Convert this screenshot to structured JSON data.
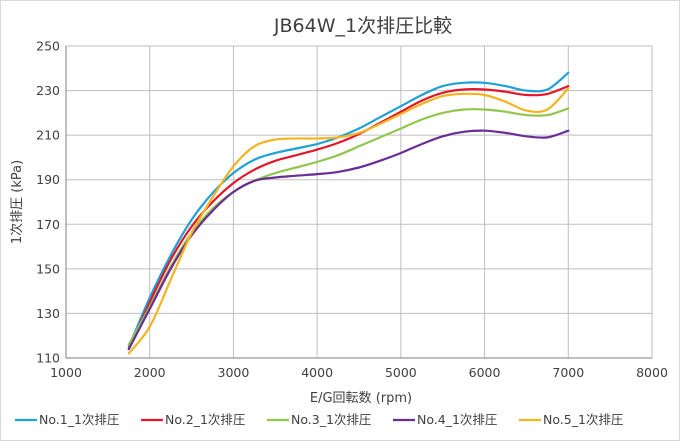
{
  "chart_data": {
    "type": "line",
    "title": "JB64W_1次排圧比較",
    "xlabel": "E/G回転数 (rpm)",
    "ylabel": "1次排圧 (kPa)",
    "xlim": [
      1000,
      8000
    ],
    "ylim": [
      110,
      250
    ],
    "x_ticks": [
      1000,
      2000,
      3000,
      4000,
      5000,
      6000,
      7000,
      8000
    ],
    "y_ticks": [
      110,
      130,
      150,
      170,
      190,
      210,
      230,
      250
    ],
    "grid": true,
    "legend_position": "bottom",
    "series": [
      {
        "name": "No.1_1次排圧",
        "color": "#1fa0d8",
        "points": [
          [
            1750,
            115
          ],
          [
            2000,
            137
          ],
          [
            2250,
            156
          ],
          [
            2500,
            172
          ],
          [
            2750,
            184
          ],
          [
            3000,
            193
          ],
          [
            3250,
            199
          ],
          [
            3500,
            202
          ],
          [
            3750,
            204
          ],
          [
            4000,
            206
          ],
          [
            4250,
            209
          ],
          [
            4500,
            213
          ],
          [
            4750,
            218
          ],
          [
            5000,
            223
          ],
          [
            5250,
            228
          ],
          [
            5500,
            232
          ],
          [
            5750,
            233.5
          ],
          [
            6000,
            233.5
          ],
          [
            6250,
            232
          ],
          [
            6500,
            230
          ],
          [
            6750,
            230.5
          ],
          [
            7000,
            238
          ]
        ]
      },
      {
        "name": "No.2_1次排圧",
        "color": "#e3172a",
        "points": [
          [
            1750,
            114
          ],
          [
            2000,
            135
          ],
          [
            2250,
            154
          ],
          [
            2500,
            169
          ],
          [
            2750,
            180
          ],
          [
            3000,
            188.5
          ],
          [
            3250,
            194.5
          ],
          [
            3500,
            198.5
          ],
          [
            3750,
            201
          ],
          [
            4000,
            203.5
          ],
          [
            4250,
            206.5
          ],
          [
            4500,
            210.5
          ],
          [
            4750,
            215.5
          ],
          [
            5000,
            220.5
          ],
          [
            5250,
            225.5
          ],
          [
            5500,
            229
          ],
          [
            5750,
            230.5
          ],
          [
            6000,
            230.5
          ],
          [
            6250,
            229.5
          ],
          [
            6500,
            228
          ],
          [
            6750,
            228.5
          ],
          [
            7000,
            232
          ]
        ]
      },
      {
        "name": "No.3_1次排圧",
        "color": "#92c64f",
        "points": [
          [
            1750,
            116
          ],
          [
            2000,
            133
          ],
          [
            2250,
            151
          ],
          [
            2500,
            166
          ],
          [
            2750,
            177
          ],
          [
            3000,
            184.5
          ],
          [
            3250,
            189.5
          ],
          [
            3500,
            193
          ],
          [
            3750,
            195.5
          ],
          [
            4000,
            198
          ],
          [
            4250,
            201
          ],
          [
            4500,
            205
          ],
          [
            4750,
            209
          ],
          [
            5000,
            213
          ],
          [
            5250,
            217
          ],
          [
            5500,
            220
          ],
          [
            5750,
            221.5
          ],
          [
            6000,
            221.5
          ],
          [
            6250,
            220.5
          ],
          [
            6500,
            219
          ],
          [
            6750,
            219
          ],
          [
            7000,
            222
          ]
        ]
      },
      {
        "name": "No.4_1次排圧",
        "color": "#6a2d94",
        "points": [
          [
            1750,
            114
          ],
          [
            2000,
            132
          ],
          [
            2250,
            150
          ],
          [
            2500,
            165
          ],
          [
            2750,
            176
          ],
          [
            3000,
            184.5
          ],
          [
            3250,
            189.5
          ],
          [
            3500,
            191
          ],
          [
            3750,
            191.8
          ],
          [
            4000,
            192.5
          ],
          [
            4250,
            193.5
          ],
          [
            4500,
            195.5
          ],
          [
            4750,
            198.5
          ],
          [
            5000,
            202
          ],
          [
            5250,
            206
          ],
          [
            5500,
            209.5
          ],
          [
            5750,
            211.5
          ],
          [
            6000,
            212
          ],
          [
            6250,
            211
          ],
          [
            6500,
            209.5
          ],
          [
            6750,
            209
          ],
          [
            7000,
            212
          ]
        ]
      },
      {
        "name": "No.5_1次排圧",
        "color": "#f3b421",
        "points": [
          [
            1750,
            112
          ],
          [
            2000,
            124
          ],
          [
            2250,
            145
          ],
          [
            2500,
            166
          ],
          [
            2750,
            182
          ],
          [
            3000,
            196
          ],
          [
            3250,
            205
          ],
          [
            3500,
            208
          ],
          [
            3750,
            208.5
          ],
          [
            4000,
            208.5
          ],
          [
            4250,
            209
          ],
          [
            4500,
            211
          ],
          [
            4750,
            215
          ],
          [
            5000,
            219.5
          ],
          [
            5250,
            224
          ],
          [
            5500,
            227.5
          ],
          [
            5750,
            228.5
          ],
          [
            6000,
            228
          ],
          [
            6250,
            225
          ],
          [
            6500,
            221
          ],
          [
            6750,
            221.5
          ],
          [
            7000,
            231
          ]
        ]
      }
    ]
  }
}
